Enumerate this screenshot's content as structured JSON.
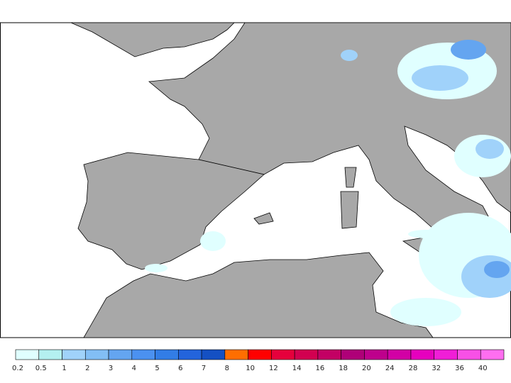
{
  "colorbar": {
    "items": [
      {
        "label": "0.2",
        "color": "#e0ffff"
      },
      {
        "label": "0.5",
        "color": "#b4f0f0"
      },
      {
        "label": "1",
        "color": "#a0d2fa"
      },
      {
        "label": "2",
        "color": "#82bef5"
      },
      {
        "label": "3",
        "color": "#64a5f0"
      },
      {
        "label": "4",
        "color": "#4b91f0"
      },
      {
        "label": "5",
        "color": "#327de6"
      },
      {
        "label": "6",
        "color": "#2364dc"
      },
      {
        "label": "7",
        "color": "#1450c3"
      },
      {
        "label": "8",
        "color": "#ff6e00"
      },
      {
        "label": "10",
        "color": "#ff0000"
      },
      {
        "label": "12",
        "color": "#e6003c"
      },
      {
        "label": "14",
        "color": "#d20050"
      },
      {
        "label": "16",
        "color": "#c30064"
      },
      {
        "label": "18",
        "color": "#af0078"
      },
      {
        "label": "20",
        "color": "#be008c"
      },
      {
        "label": "24",
        "color": "#d200a5"
      },
      {
        "label": "28",
        "color": "#e600be"
      },
      {
        "label": "32",
        "color": "#f01ed7"
      },
      {
        "label": "36",
        "color": "#f850e6"
      },
      {
        "label": "40",
        "color": "#ff6ef0"
      }
    ]
  }
}
